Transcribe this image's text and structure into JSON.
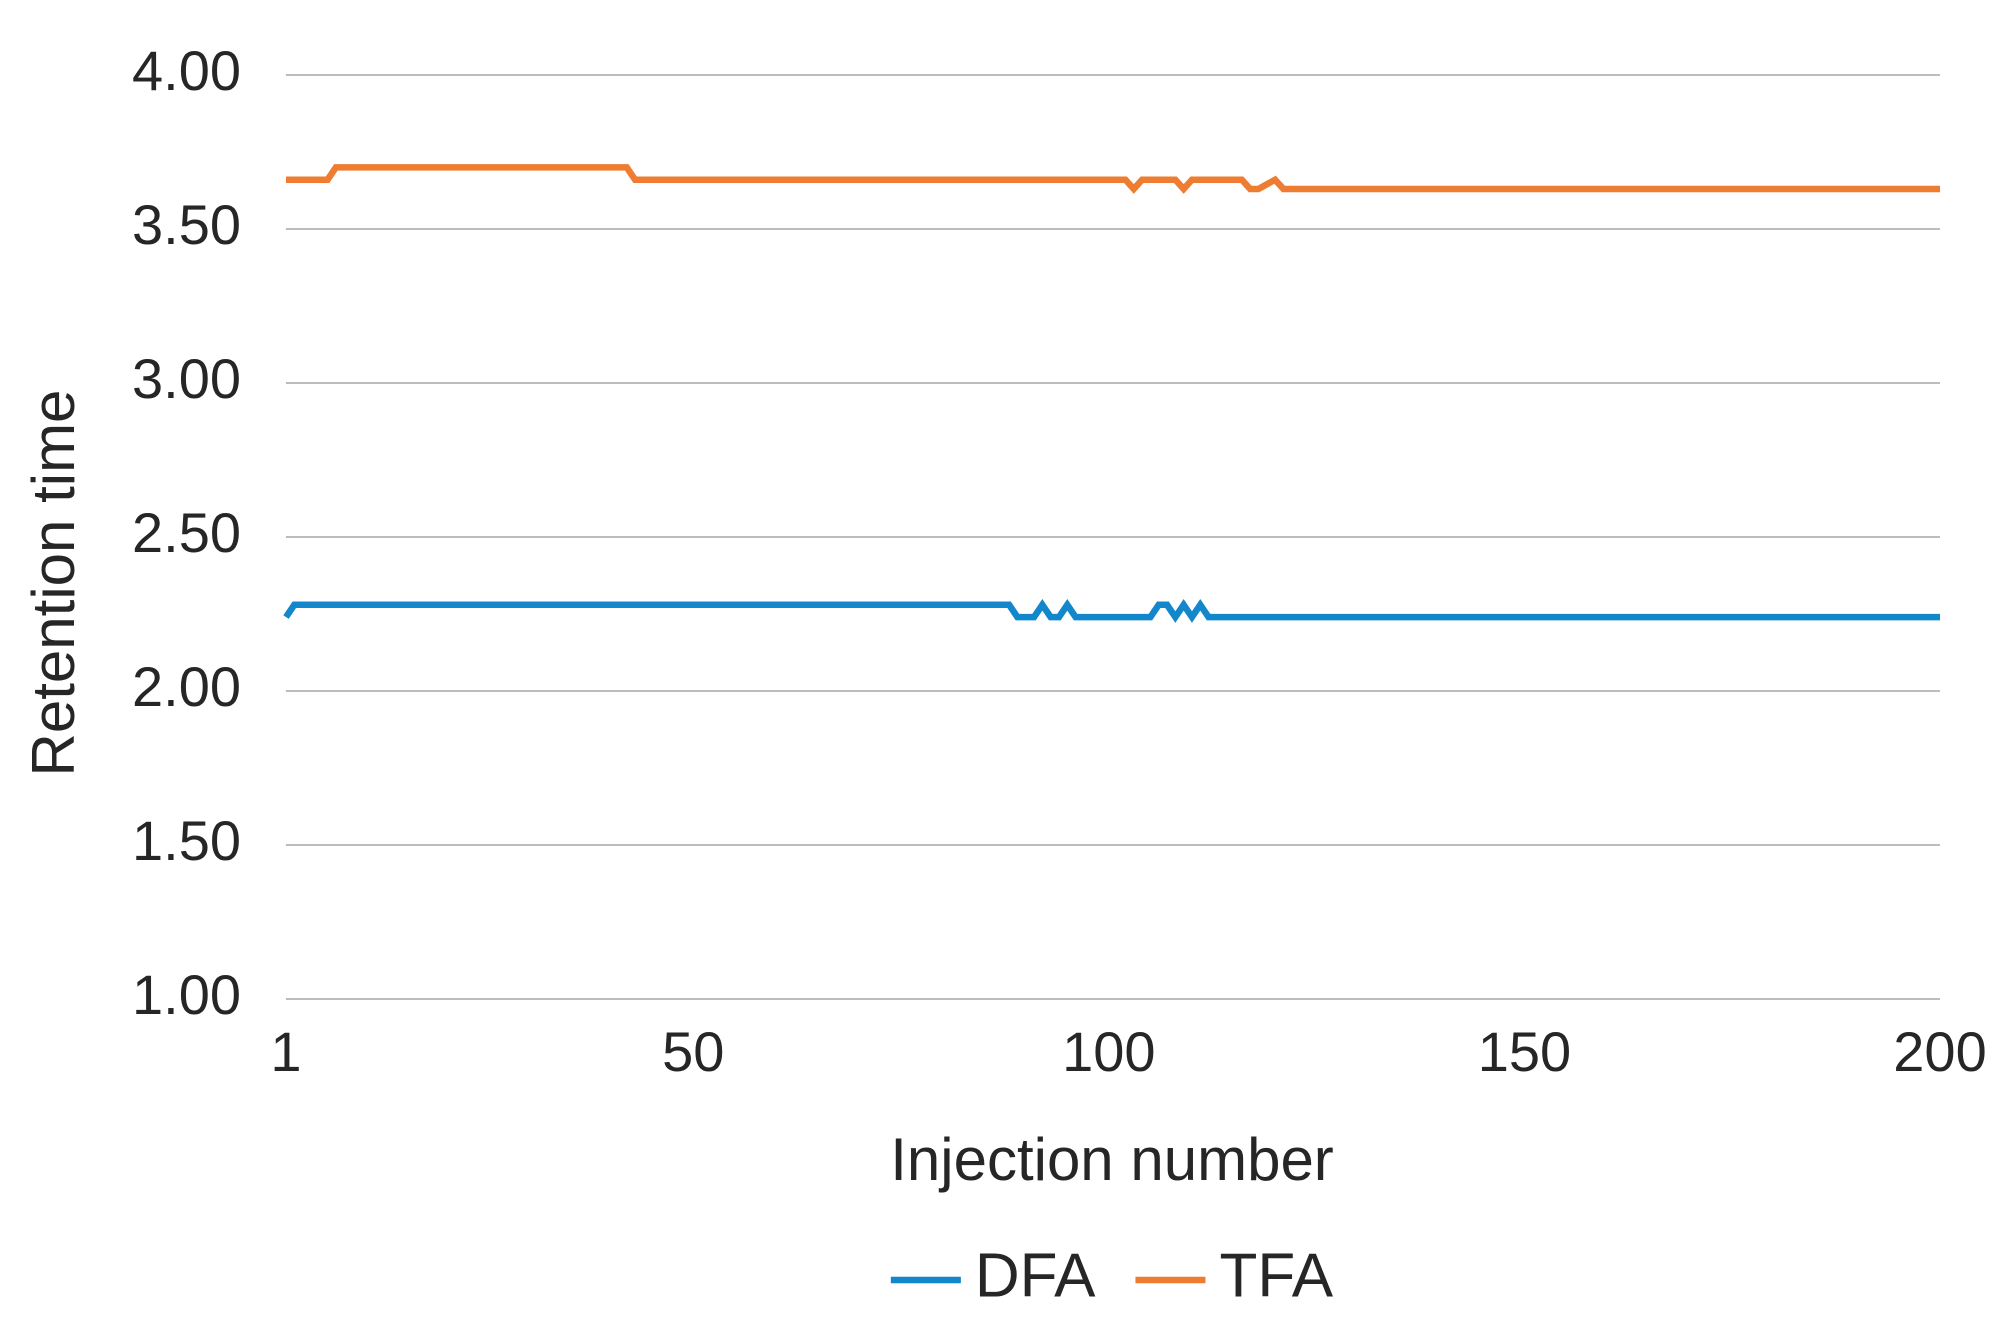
{
  "chart_data": {
    "type": "line",
    "x_label": "Injection number",
    "y_label": "Retention time",
    "x": [
      1,
      2,
      6,
      7,
      42,
      43,
      88,
      89,
      91,
      92,
      93,
      94,
      95,
      96,
      102,
      103,
      104,
      105,
      106,
      107,
      108,
      109,
      110,
      111,
      112,
      116,
      117,
      118,
      120,
      121,
      200
    ],
    "series": [
      {
        "name": "DFA",
        "color": "#1387cc",
        "values": [
          2.24,
          2.28,
          2.28,
          2.28,
          2.28,
          2.28,
          2.28,
          2.24,
          2.24,
          2.28,
          2.24,
          2.24,
          2.28,
          2.24,
          2.24,
          2.24,
          2.24,
          2.24,
          2.28,
          2.28,
          2.24,
          2.28,
          2.24,
          2.28,
          2.24,
          2.24,
          2.24,
          2.24,
          2.24,
          2.24,
          2.24
        ]
      },
      {
        "name": "TFA",
        "color": "#ee7d31",
        "values": [
          3.66,
          3.66,
          3.66,
          3.7,
          3.7,
          3.66,
          3.66,
          3.66,
          3.66,
          3.66,
          3.66,
          3.66,
          3.66,
          3.66,
          3.66,
          3.63,
          3.66,
          3.66,
          3.66,
          3.66,
          3.66,
          3.63,
          3.66,
          3.66,
          3.66,
          3.66,
          3.63,
          3.63,
          3.66,
          3.63,
          3.63
        ]
      }
    ],
    "xlim": [
      1,
      200
    ],
    "xticks": [
      1,
      50,
      100,
      150,
      200
    ],
    "ylim": [
      1,
      4
    ],
    "yticks": [
      {
        "value": 1,
        "label": "1.00"
      },
      {
        "value": 1.5,
        "label": "1.50"
      },
      {
        "value": 2,
        "label": "2.00"
      },
      {
        "value": 2.5,
        "label": "2.50"
      },
      {
        "value": 3,
        "label": "3.00"
      },
      {
        "value": 3.5,
        "label": "3.50"
      },
      {
        "value": 4,
        "label": "4.00"
      }
    ],
    "grid": true,
    "legend": "bottom"
  }
}
